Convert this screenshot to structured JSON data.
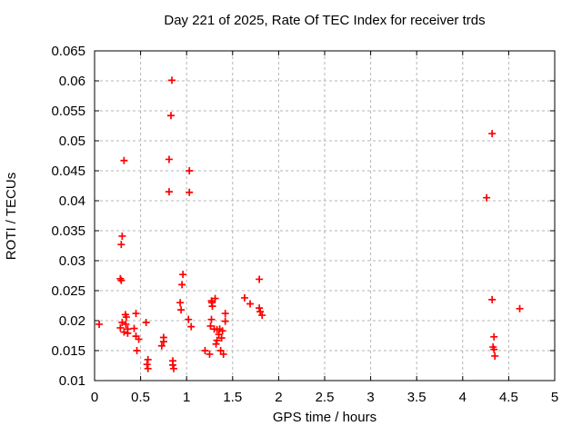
{
  "chart_data": {
    "type": "scatter",
    "title": "Day 221 of 2025, Rate Of TEC Index for receiver trds",
    "xlabel": "GPS time / hours",
    "ylabel": "ROTI / TECUs",
    "xlim": [
      0,
      5
    ],
    "ylim": [
      0.01,
      0.065
    ],
    "x_ticks": [
      0,
      0.5,
      1,
      1.5,
      2,
      2.5,
      3,
      3.5,
      4,
      4.5,
      5
    ],
    "x_tick_labels": [
      "0",
      "0.5",
      "1",
      "1.5",
      "2",
      "2.5",
      "3",
      "3.5",
      "4",
      "4.5",
      "5"
    ],
    "y_ticks": [
      0.01,
      0.015,
      0.02,
      0.025,
      0.03,
      0.035,
      0.04,
      0.045,
      0.05,
      0.055,
      0.06,
      0.065
    ],
    "y_tick_labels": [
      "0.01",
      "0.015",
      "0.02",
      "0.025",
      "0.03",
      "0.035",
      "0.04",
      "0.045",
      "0.05",
      "0.055",
      "0.06",
      "0.065"
    ],
    "grid": true,
    "legend": "none",
    "marker": "plus",
    "marker_color": "#ff0000",
    "grid_color": "#b5b5b5",
    "axis_color": "#000000",
    "points": [
      [
        0.05,
        0.0194
      ],
      [
        0.32,
        0.0467
      ],
      [
        0.3,
        0.0341
      ],
      [
        0.29,
        0.0327
      ],
      [
        0.28,
        0.027
      ],
      [
        0.29,
        0.0267
      ],
      [
        0.3,
        0.0197
      ],
      [
        0.335,
        0.021
      ],
      [
        0.345,
        0.0206
      ],
      [
        0.34,
        0.0194
      ],
      [
        0.28,
        0.0188
      ],
      [
        0.36,
        0.0186
      ],
      [
        0.36,
        0.0179
      ],
      [
        0.32,
        0.0181
      ],
      [
        0.43,
        0.0187
      ],
      [
        0.45,
        0.0212
      ],
      [
        0.56,
        0.0197
      ],
      [
        0.45,
        0.0174
      ],
      [
        0.48,
        0.0169
      ],
      [
        0.46,
        0.015
      ],
      [
        0.58,
        0.0135
      ],
      [
        0.57,
        0.0127
      ],
      [
        0.58,
        0.012
      ],
      [
        0.75,
        0.0172
      ],
      [
        0.75,
        0.0165
      ],
      [
        0.73,
        0.0158
      ],
      [
        0.85,
        0.0133
      ],
      [
        0.85,
        0.0126
      ],
      [
        0.86,
        0.012
      ],
      [
        0.84,
        0.0601
      ],
      [
        0.83,
        0.0542
      ],
      [
        0.81,
        0.0469
      ],
      [
        0.81,
        0.0415
      ],
      [
        1.03,
        0.045
      ],
      [
        1.03,
        0.0414
      ],
      [
        0.96,
        0.0277
      ],
      [
        0.95,
        0.026
      ],
      [
        0.93,
        0.023
      ],
      [
        0.94,
        0.0218
      ],
      [
        1.02,
        0.0202
      ],
      [
        1.05,
        0.019
      ],
      [
        1.31,
        0.0237
      ],
      [
        1.27,
        0.0233
      ],
      [
        1.275,
        0.023
      ],
      [
        1.28,
        0.0224
      ],
      [
        1.42,
        0.0212
      ],
      [
        1.27,
        0.0202
      ],
      [
        1.42,
        0.0199
      ],
      [
        1.26,
        0.0191
      ],
      [
        1.3,
        0.0186
      ],
      [
        1.33,
        0.0185
      ],
      [
        1.36,
        0.0186
      ],
      [
        1.39,
        0.0183
      ],
      [
        1.35,
        0.0177
      ],
      [
        1.38,
        0.0171
      ],
      [
        1.33,
        0.0167
      ],
      [
        1.32,
        0.0161
      ],
      [
        1.2,
        0.015
      ],
      [
        1.25,
        0.0144
      ],
      [
        1.37,
        0.015
      ],
      [
        1.4,
        0.0144
      ],
      [
        1.79,
        0.0269
      ],
      [
        1.63,
        0.0238
      ],
      [
        1.69,
        0.0228
      ],
      [
        1.79,
        0.0221
      ],
      [
        1.8,
        0.0215
      ],
      [
        1.82,
        0.0209
      ],
      [
        4.32,
        0.0512
      ],
      [
        4.26,
        0.0405
      ],
      [
        4.32,
        0.0235
      ],
      [
        4.62,
        0.022
      ],
      [
        4.34,
        0.0173
      ],
      [
        4.33,
        0.0156
      ],
      [
        4.34,
        0.0152
      ],
      [
        4.35,
        0.0141
      ]
    ]
  }
}
